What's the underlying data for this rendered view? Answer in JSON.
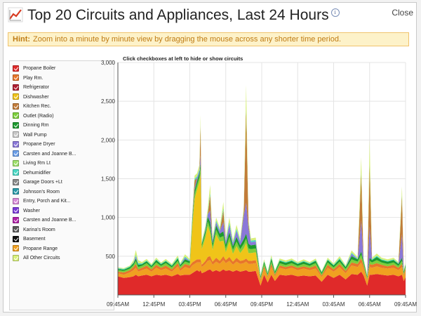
{
  "window": {
    "title": "Top 20 Circuits and Appliances, Last 24 Hours",
    "info_icon": "i",
    "close_label": "Close"
  },
  "hint": {
    "label": "Hint:",
    "text": "Zoom into a minute by minute view by dragging the mouse across any shorter time period."
  },
  "legend": {
    "items": [
      {
        "label": "Propane Boiler",
        "color": "#e02a2a"
      },
      {
        "label": "Play Rm.",
        "color": "#e8762a"
      },
      {
        "label": "Refrigerator",
        "color": "#b01e32"
      },
      {
        "label": "Dishwasher",
        "color": "#f0c419"
      },
      {
        "label": "Kitchen Rec.",
        "color": "#c27c3a"
      },
      {
        "label": "Outlet (Radio)",
        "color": "#7ccf3a"
      },
      {
        "label": "Dinning Rm",
        "color": "#1c9a2e"
      },
      {
        "label": "Wall Pump",
        "color": "#c8c8c8"
      },
      {
        "label": "Propane Dryer",
        "color": "#8a78d8"
      },
      {
        "label": "Carsten and Joanne B...",
        "color": "#6a9ee8"
      },
      {
        "label": "Living Rm Lt",
        "color": "#9ee06a"
      },
      {
        "label": "Dehumidifier",
        "color": "#4ad8c4"
      },
      {
        "label": "Garage Doors +Lt",
        "color": "#8a8a8a"
      },
      {
        "label": "Johnson's Room",
        "color": "#2a9aa8"
      },
      {
        "label": "Entry, Porch and Kit...",
        "color": "#d88ad8"
      },
      {
        "label": "Washer",
        "color": "#7a3ad8"
      },
      {
        "label": "Carsten and Joanne B...",
        "color": "#b020a8"
      },
      {
        "label": "Karina's Room",
        "color": "#5a5a5a"
      },
      {
        "label": "Basement",
        "color": "#111111"
      },
      {
        "label": "Propane Range",
        "color": "#f0a020"
      },
      {
        "label": "All Other Circuits",
        "color": "#d8f07a"
      }
    ]
  },
  "chart_data": {
    "type": "area",
    "title": "Click checkboxes at left to hide or show circuits",
    "ylim": [
      0,
      3000
    ],
    "yticks": [
      {
        "value": 500,
        "label": "500"
      },
      {
        "value": 1000,
        "label": "1,000"
      },
      {
        "value": 1500,
        "label": "1,500"
      },
      {
        "value": 2000,
        "label": "2,000"
      },
      {
        "value": 2500,
        "label": "2,500"
      },
      {
        "value": 3000,
        "label": "3,000"
      }
    ],
    "xticks": [
      "09:45AM",
      "12:45PM",
      "03:45PM",
      "06:45PM",
      "09:45PM",
      "12:45AM",
      "03:45AM",
      "06:45AM",
      "09:45AM"
    ],
    "xrange_hours": 24,
    "series_names": [
      "Propane Boiler",
      "Propane Range",
      "Play Rm.",
      "Dishwasher",
      "Outlet (Radio)",
      "Dinning Rm",
      "Propane Dryer",
      "Kitchen Rec.",
      "Dehumidifier",
      "All Other Circuits"
    ],
    "series_colors": [
      "#e02a2a",
      "#f0a020",
      "#e8762a",
      "#f0c419",
      "#7ccf3a",
      "#1c9a2e",
      "#8a78d8",
      "#c27c3a",
      "#4ad8c4",
      "#d8f07a"
    ],
    "points": [
      {
        "t": 0.0,
        "v": [
          240,
          40,
          20,
          0,
          20,
          15,
          0,
          0,
          10,
          10
        ]
      },
      {
        "t": 0.5,
        "v": [
          220,
          40,
          30,
          0,
          20,
          15,
          0,
          0,
          10,
          10
        ]
      },
      {
        "t": 1.0,
        "v": [
          230,
          60,
          30,
          0,
          20,
          20,
          0,
          0,
          10,
          10
        ]
      },
      {
        "t": 1.3,
        "v": [
          240,
          80,
          40,
          0,
          25,
          25,
          0,
          0,
          10,
          30
        ]
      },
      {
        "t": 1.5,
        "v": [
          260,
          90,
          50,
          0,
          40,
          30,
          30,
          0,
          20,
          60
        ]
      },
      {
        "t": 1.7,
        "v": [
          240,
          60,
          30,
          0,
          30,
          30,
          0,
          0,
          20,
          40
        ]
      },
      {
        "t": 2.0,
        "v": [
          250,
          70,
          30,
          0,
          25,
          20,
          0,
          0,
          10,
          20
        ]
      },
      {
        "t": 2.4,
        "v": [
          260,
          80,
          40,
          0,
          30,
          25,
          0,
          0,
          10,
          20
        ]
      },
      {
        "t": 2.8,
        "v": [
          240,
          60,
          30,
          0,
          25,
          20,
          0,
          0,
          10,
          15
        ]
      },
      {
        "t": 3.2,
        "v": [
          260,
          90,
          40,
          0,
          30,
          30,
          0,
          0,
          10,
          20
        ]
      },
      {
        "t": 3.6,
        "v": [
          250,
          70,
          30,
          0,
          25,
          20,
          0,
          0,
          10,
          15
        ]
      },
      {
        "t": 4.0,
        "v": [
          260,
          80,
          40,
          0,
          30,
          25,
          0,
          0,
          10,
          20
        ]
      },
      {
        "t": 4.5,
        "v": [
          240,
          60,
          30,
          0,
          25,
          20,
          0,
          0,
          10,
          15
        ]
      },
      {
        "t": 5.0,
        "v": [
          270,
          100,
          40,
          0,
          30,
          30,
          0,
          0,
          15,
          25
        ]
      },
      {
        "t": 5.2,
        "v": [
          250,
          60,
          30,
          0,
          25,
          20,
          0,
          0,
          10,
          15
        ]
      },
      {
        "t": 5.6,
        "v": [
          260,
          100,
          40,
          0,
          30,
          30,
          20,
          0,
          15,
          30
        ]
      },
      {
        "t": 6.0,
        "v": [
          260,
          80,
          40,
          0,
          30,
          25,
          0,
          0,
          10,
          20
        ]
      },
      {
        "t": 6.2,
        "v": [
          280,
          100,
          40,
          450,
          50,
          40,
          30,
          0,
          20,
          30
        ]
      },
      {
        "t": 6.4,
        "v": [
          300,
          100,
          40,
          800,
          60,
          50,
          30,
          100,
          20,
          40
        ]
      },
      {
        "t": 6.6,
        "v": [
          320,
          100,
          40,
          900,
          60,
          50,
          40,
          0,
          20,
          40
        ]
      },
      {
        "t": 6.8,
        "v": [
          300,
          120,
          40,
          1000,
          60,
          50,
          30,
          0,
          20,
          60
        ]
      },
      {
        "t": 6.9,
        "v": [
          320,
          100,
          40,
          1100,
          80,
          60,
          100,
          400,
          20,
          100
        ]
      },
      {
        "t": 7.0,
        "v": [
          280,
          80,
          30,
          200,
          40,
          30,
          0,
          0,
          15,
          20
        ]
      },
      {
        "t": 7.3,
        "v": [
          300,
          100,
          40,
          300,
          50,
          40,
          20,
          0,
          15,
          30
        ]
      },
      {
        "t": 7.5,
        "v": [
          320,
          120,
          50,
          400,
          60,
          60,
          30,
          0,
          20,
          60
        ]
      },
      {
        "t": 7.7,
        "v": [
          330,
          120,
          50,
          300,
          60,
          80,
          150,
          200,
          30,
          100
        ]
      },
      {
        "t": 7.9,
        "v": [
          300,
          90,
          40,
          150,
          40,
          50,
          30,
          0,
          20,
          30
        ]
      },
      {
        "t": 8.2,
        "v": [
          320,
          110,
          50,
          300,
          60,
          60,
          40,
          0,
          20,
          40
        ]
      },
      {
        "t": 8.5,
        "v": [
          300,
          100,
          40,
          250,
          50,
          50,
          30,
          0,
          20,
          30
        ]
      },
      {
        "t": 8.8,
        "v": [
          330,
          120,
          50,
          200,
          60,
          60,
          120,
          150,
          30,
          80
        ]
      },
      {
        "t": 9.0,
        "v": [
          310,
          100,
          40,
          100,
          50,
          50,
          30,
          0,
          20,
          30
        ]
      },
      {
        "t": 9.3,
        "v": [
          320,
          120,
          50,
          200,
          60,
          60,
          100,
          0,
          30,
          60
        ]
      },
      {
        "t": 9.6,
        "v": [
          300,
          90,
          40,
          100,
          50,
          50,
          30,
          0,
          20,
          30
        ]
      },
      {
        "t": 9.9,
        "v": [
          320,
          110,
          50,
          150,
          60,
          60,
          80,
          0,
          25,
          50
        ]
      },
      {
        "t": 10.2,
        "v": [
          300,
          100,
          40,
          100,
          50,
          50,
          40,
          0,
          20,
          30
        ]
      },
      {
        "t": 10.5,
        "v": [
          310,
          100,
          40,
          150,
          60,
          60,
          300,
          50,
          20,
          40
        ]
      },
      {
        "t": 10.7,
        "v": [
          320,
          110,
          40,
          200,
          60,
          60,
          400,
          1200,
          20,
          300
        ]
      },
      {
        "t": 10.9,
        "v": [
          300,
          100,
          40,
          100,
          60,
          60,
          200,
          50,
          20,
          40
        ]
      },
      {
        "t": 11.1,
        "v": [
          300,
          100,
          40,
          100,
          50,
          50,
          40,
          0,
          20,
          30
        ]
      },
      {
        "t": 11.5,
        "v": [
          310,
          100,
          40,
          100,
          50,
          50,
          40,
          0,
          20,
          30
        ]
      },
      {
        "t": 11.9,
        "v": [
          120,
          60,
          20,
          0,
          20,
          20,
          0,
          0,
          10,
          10
        ]
      },
      {
        "t": 12.2,
        "v": [
          260,
          80,
          30,
          0,
          30,
          30,
          0,
          0,
          10,
          20
        ]
      },
      {
        "t": 12.5,
        "v": [
          160,
          60,
          20,
          0,
          20,
          20,
          0,
          0,
          10,
          10
        ]
      },
      {
        "t": 12.8,
        "v": [
          260,
          100,
          40,
          0,
          30,
          40,
          0,
          0,
          15,
          30
        ]
      },
      {
        "t": 13.1,
        "v": [
          180,
          60,
          20,
          0,
          20,
          20,
          0,
          0,
          10,
          10
        ]
      },
      {
        "t": 13.5,
        "v": [
          260,
          90,
          30,
          0,
          30,
          30,
          0,
          0,
          10,
          20
        ]
      },
      {
        "t": 14.0,
        "v": [
          250,
          80,
          30,
          0,
          25,
          30,
          0,
          0,
          10,
          20
        ]
      },
      {
        "t": 14.5,
        "v": [
          260,
          90,
          30,
          0,
          30,
          30,
          0,
          0,
          10,
          20
        ]
      },
      {
        "t": 15.0,
        "v": [
          240,
          80,
          30,
          0,
          25,
          25,
          0,
          0,
          10,
          15
        ]
      },
      {
        "t": 15.5,
        "v": [
          250,
          90,
          30,
          0,
          30,
          30,
          0,
          0,
          10,
          20
        ]
      },
      {
        "t": 16.0,
        "v": [
          240,
          80,
          30,
          0,
          25,
          25,
          0,
          0,
          10,
          15
        ]
      },
      {
        "t": 16.5,
        "v": [
          250,
          90,
          40,
          0,
          30,
          30,
          0,
          0,
          10,
          20
        ]
      },
      {
        "t": 17.0,
        "v": [
          170,
          60,
          20,
          0,
          20,
          20,
          0,
          0,
          10,
          10
        ]
      },
      {
        "t": 17.5,
        "v": [
          260,
          90,
          40,
          0,
          30,
          30,
          0,
          0,
          10,
          20
        ]
      },
      {
        "t": 18.0,
        "v": [
          220,
          80,
          30,
          0,
          25,
          25,
          0,
          0,
          10,
          15
        ]
      },
      {
        "t": 18.5,
        "v": [
          260,
          100,
          40,
          0,
          30,
          30,
          0,
          0,
          15,
          25
        ]
      },
      {
        "t": 19.0,
        "v": [
          200,
          80,
          30,
          0,
          25,
          25,
          0,
          0,
          10,
          15
        ]
      },
      {
        "t": 19.5,
        "v": [
          270,
          110,
          40,
          0,
          40,
          40,
          30,
          0,
          15,
          30
        ]
      },
      {
        "t": 20.0,
        "v": [
          260,
          100,
          40,
          0,
          30,
          30,
          0,
          0,
          10,
          20
        ]
      },
      {
        "t": 20.3,
        "v": [
          300,
          120,
          50,
          0,
          50,
          40,
          400,
          600,
          20,
          200
        ]
      },
      {
        "t": 20.5,
        "v": [
          250,
          90,
          40,
          0,
          30,
          30,
          0,
          0,
          10,
          20
        ]
      },
      {
        "t": 20.8,
        "v": [
          120,
          60,
          20,
          0,
          20,
          20,
          0,
          0,
          10,
          10
        ]
      },
      {
        "t": 21.0,
        "v": [
          260,
          100,
          40,
          0,
          40,
          40,
          400,
          800,
          20,
          300
        ]
      },
      {
        "t": 21.2,
        "v": [
          260,
          90,
          40,
          0,
          30,
          30,
          0,
          0,
          10,
          20
        ]
      },
      {
        "t": 21.6,
        "v": [
          270,
          100,
          40,
          0,
          40,
          40,
          0,
          0,
          15,
          30
        ]
      },
      {
        "t": 22.0,
        "v": [
          260,
          90,
          40,
          0,
          30,
          30,
          0,
          0,
          10,
          20
        ]
      },
      {
        "t": 22.5,
        "v": [
          250,
          90,
          30,
          0,
          30,
          30,
          0,
          0,
          10,
          20
        ]
      },
      {
        "t": 23.0,
        "v": [
          260,
          90,
          40,
          0,
          30,
          30,
          0,
          0,
          10,
          20
        ]
      },
      {
        "t": 23.4,
        "v": [
          240,
          80,
          30,
          0,
          25,
          25,
          0,
          0,
          10,
          15
        ]
      },
      {
        "t": 23.7,
        "v": [
          260,
          100,
          40,
          0,
          40,
          40,
          300,
          500,
          20,
          100
        ]
      },
      {
        "t": 23.85,
        "v": [
          180,
          60,
          20,
          0,
          20,
          20,
          0,
          0,
          10,
          10
        ]
      },
      {
        "t": 24.0,
        "v": [
          230,
          80,
          30,
          0,
          25,
          25,
          0,
          0,
          10,
          15
        ]
      }
    ]
  }
}
